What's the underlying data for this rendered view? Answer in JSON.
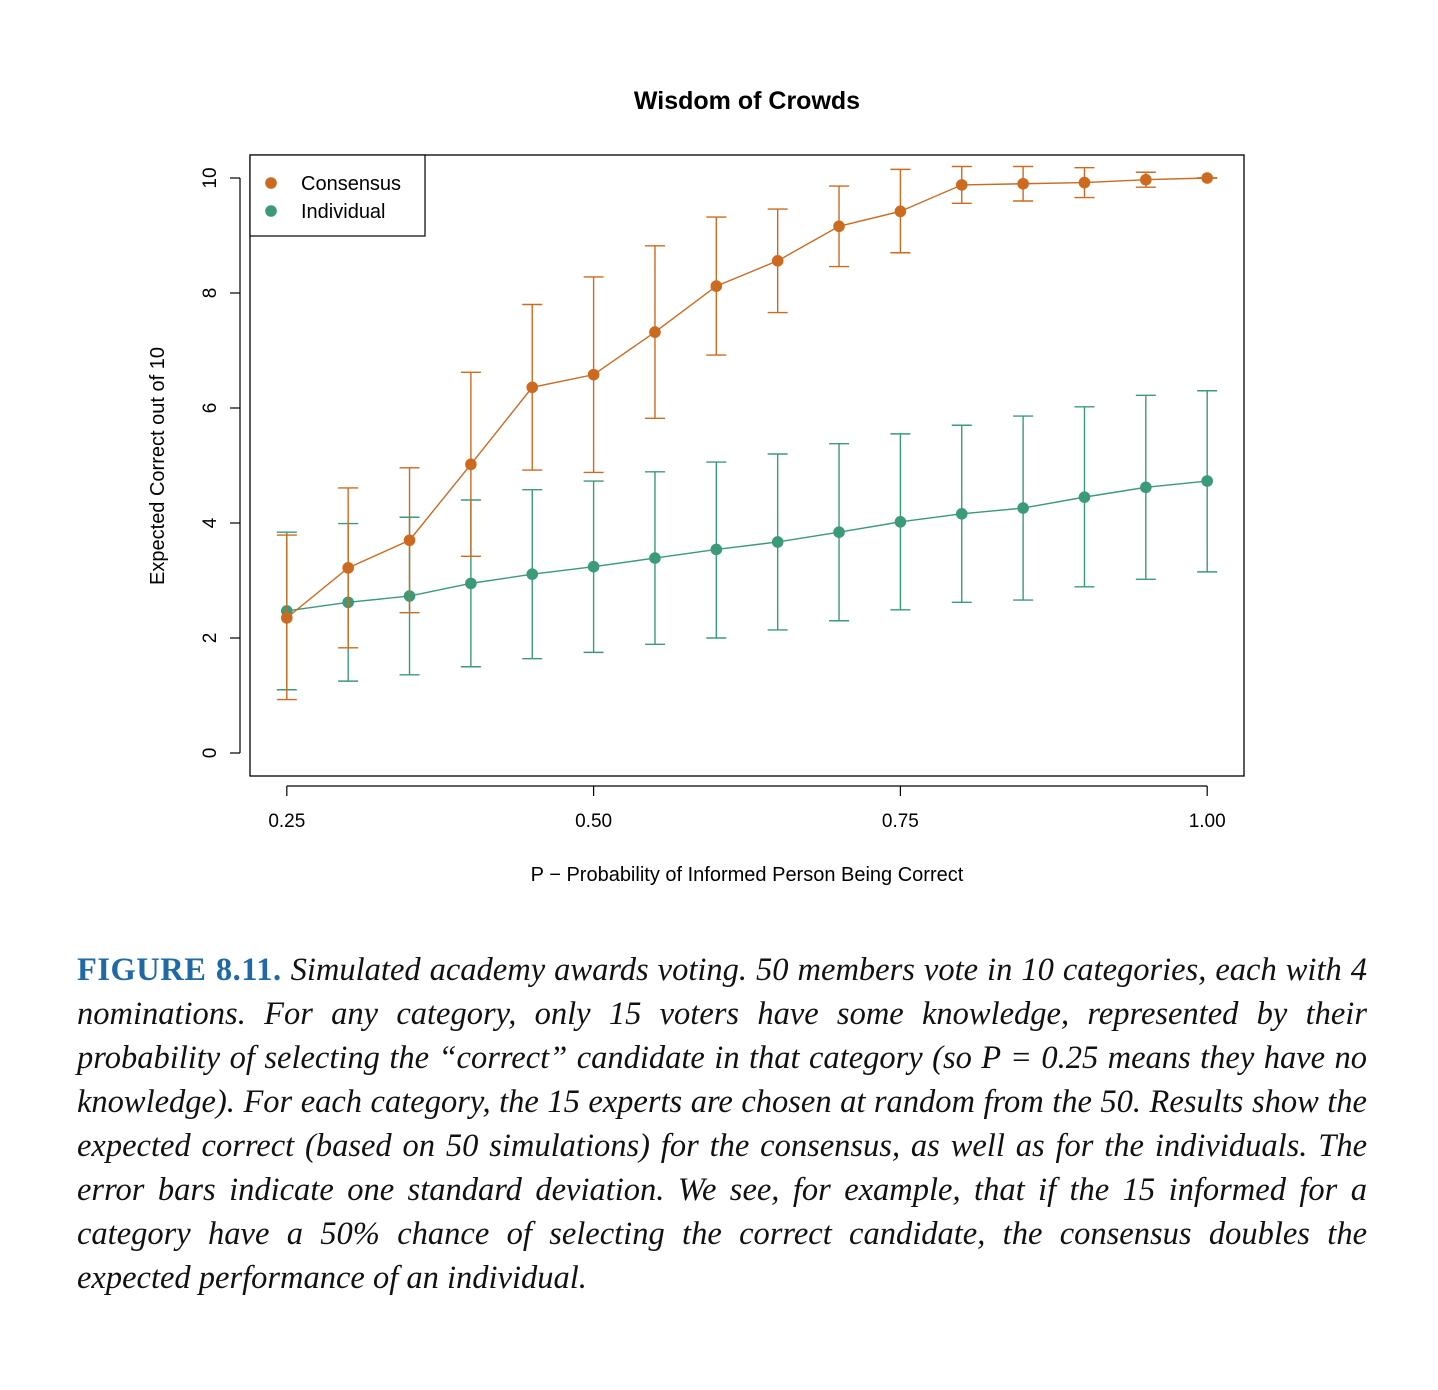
{
  "chart_data": {
    "type": "line",
    "title": "Wisdom of Crowds",
    "xlabel": "P −  Probability of Informed Person Being Correct",
    "ylabel": "Expected Correct out of 10",
    "xlim": [
      0.22,
      1.03
    ],
    "ylim": [
      -0.4,
      10.4
    ],
    "x_ticks": [
      0.25,
      0.5,
      0.75,
      1.0
    ],
    "x_tick_labels": [
      "0.25",
      "0.50",
      "0.75",
      "1.00"
    ],
    "y_ticks": [
      0,
      2,
      4,
      6,
      8,
      10
    ],
    "y_tick_labels": [
      "0",
      "2",
      "4",
      "6",
      "8",
      "10"
    ],
    "legend_position": "top-left",
    "grid": false,
    "x": [
      0.25,
      0.3,
      0.35,
      0.4,
      0.45,
      0.5,
      0.55,
      0.6,
      0.65,
      0.7,
      0.75,
      0.8,
      0.85,
      0.9,
      0.95,
      1.0
    ],
    "series": [
      {
        "name": "Consensus",
        "color": "#cc6a1f",
        "values": [
          2.35,
          3.22,
          3.7,
          5.02,
          6.36,
          6.58,
          7.32,
          8.12,
          8.56,
          9.16,
          9.42,
          9.88,
          9.9,
          9.92,
          9.97,
          10.0
        ],
        "lower": [
          0.93,
          1.83,
          2.44,
          3.42,
          4.92,
          4.88,
          5.82,
          6.92,
          7.66,
          8.46,
          8.7,
          9.56,
          9.6,
          9.66,
          9.84,
          10.0
        ],
        "upper": [
          3.79,
          4.61,
          4.96,
          6.62,
          7.8,
          8.28,
          8.82,
          9.32,
          9.46,
          9.86,
          10.15,
          10.2,
          10.2,
          10.18,
          10.1,
          10.0
        ]
      },
      {
        "name": "Individual",
        "color": "#3a9a7a",
        "values": [
          2.47,
          2.62,
          2.73,
          2.95,
          3.11,
          3.24,
          3.39,
          3.54,
          3.67,
          3.84,
          4.02,
          4.16,
          4.26,
          4.45,
          4.62,
          4.73
        ],
        "lower": [
          1.1,
          1.25,
          1.36,
          1.5,
          1.64,
          1.75,
          1.89,
          2.0,
          2.14,
          2.3,
          2.49,
          2.62,
          2.66,
          2.89,
          3.02,
          3.15
        ],
        "upper": [
          3.84,
          3.99,
          4.1,
          4.4,
          4.58,
          4.73,
          4.89,
          5.06,
          5.2,
          5.38,
          5.55,
          5.7,
          5.86,
          6.02,
          6.22,
          6.3
        ]
      }
    ]
  },
  "caption": {
    "label": "FIGURE 8.11.",
    "text": " Simulated academy awards voting. 50 members vote in 10 categories, each with 4 nominations. For any category, only 15 voters have some knowledge, represented by their probability of selecting the “correct” candidate in that category (so P = 0.25 means they have no knowledge). For each category, the 15 experts are chosen at random from the 50. Results show the expected correct (based on 50 simulations) for the consensus, as well as for the individuals. The error bars indicate one standard deviation. We see, for example, that if the 15 informed for a category have a 50% chance of selecting the correct candidate, the consensus doubles the expected performance of an individual."
  }
}
